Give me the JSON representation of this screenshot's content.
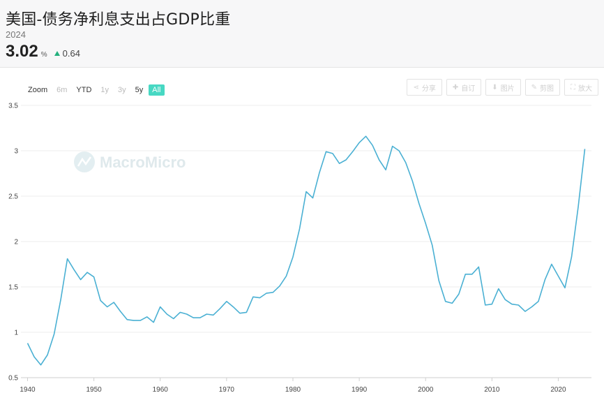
{
  "header": {
    "title": "美国-债务净利息支出占GDP比重",
    "year": "2024",
    "value": "3.02",
    "unit": "%",
    "change": "0.64"
  },
  "zoom": {
    "label": "Zoom",
    "buttons": [
      "6m",
      "YTD",
      "1y",
      "3y",
      "5y",
      "All"
    ],
    "active": "All"
  },
  "tools": [
    {
      "icon": "share-icon",
      "glyph": "⋖",
      "label": "分享"
    },
    {
      "icon": "plus-icon",
      "glyph": "✚",
      "label": "自订"
    },
    {
      "icon": "download-icon",
      "glyph": "⬇",
      "label": "图片"
    },
    {
      "icon": "pencil-icon",
      "glyph": "✎",
      "label": "剪图"
    },
    {
      "icon": "expand-icon",
      "glyph": "⛶",
      "label": "放大"
    }
  ],
  "watermark": "MacroMicro",
  "colors": {
    "line": "#4ab0d3",
    "accent": "#47d8c3",
    "up": "#23b07d"
  },
  "chart_data": {
    "type": "line",
    "title": "",
    "xlabel": "",
    "ylabel": "",
    "ylim": [
      0.5,
      3.5
    ],
    "xlim": [
      1939,
      2025
    ],
    "y_ticks": [
      "0.5",
      "1",
      "1.5",
      "2",
      "2.5",
      "3",
      "3.5"
    ],
    "x_ticks": [
      "1940",
      "1950",
      "1960",
      "1970",
      "1980",
      "1990",
      "2000",
      "2010",
      "2020"
    ],
    "grid": true,
    "series": [
      {
        "name": "",
        "x": [
          1940,
          1941,
          1942,
          1943,
          1944,
          1945,
          1946,
          1947,
          1948,
          1949,
          1950,
          1951,
          1952,
          1953,
          1954,
          1955,
          1956,
          1957,
          1958,
          1959,
          1960,
          1961,
          1962,
          1963,
          1964,
          1965,
          1966,
          1967,
          1968,
          1969,
          1970,
          1971,
          1972,
          1973,
          1974,
          1975,
          1976,
          1977,
          1978,
          1979,
          1980,
          1981,
          1982,
          1983,
          1984,
          1985,
          1986,
          1987,
          1988,
          1989,
          1990,
          1991,
          1992,
          1993,
          1994,
          1995,
          1996,
          1997,
          1998,
          1999,
          2000,
          2001,
          2002,
          2003,
          2004,
          2005,
          2006,
          2007,
          2008,
          2009,
          2010,
          2011,
          2012,
          2013,
          2014,
          2015,
          2016,
          2017,
          2018,
          2019,
          2020,
          2021,
          2022,
          2023,
          2024
        ],
        "y": [
          0.88,
          0.73,
          0.64,
          0.75,
          0.98,
          1.36,
          1.81,
          1.69,
          1.58,
          1.66,
          1.61,
          1.35,
          1.28,
          1.33,
          1.23,
          1.14,
          1.13,
          1.13,
          1.17,
          1.11,
          1.28,
          1.2,
          1.15,
          1.22,
          1.2,
          1.16,
          1.16,
          1.2,
          1.19,
          1.26,
          1.34,
          1.28,
          1.21,
          1.22,
          1.39,
          1.38,
          1.43,
          1.44,
          1.51,
          1.62,
          1.83,
          2.14,
          2.55,
          2.48,
          2.76,
          2.99,
          2.97,
          2.86,
          2.9,
          2.99,
          3.09,
          3.16,
          3.06,
          2.9,
          2.79,
          3.05,
          3.0,
          2.87,
          2.67,
          2.42,
          2.2,
          1.96,
          1.57,
          1.34,
          1.32,
          1.42,
          1.64,
          1.64,
          1.72,
          1.3,
          1.31,
          1.48,
          1.36,
          1.31,
          1.3,
          1.23,
          1.28,
          1.34,
          1.58,
          1.75,
          1.62,
          1.49,
          1.83,
          2.38,
          3.02
        ]
      }
    ]
  }
}
